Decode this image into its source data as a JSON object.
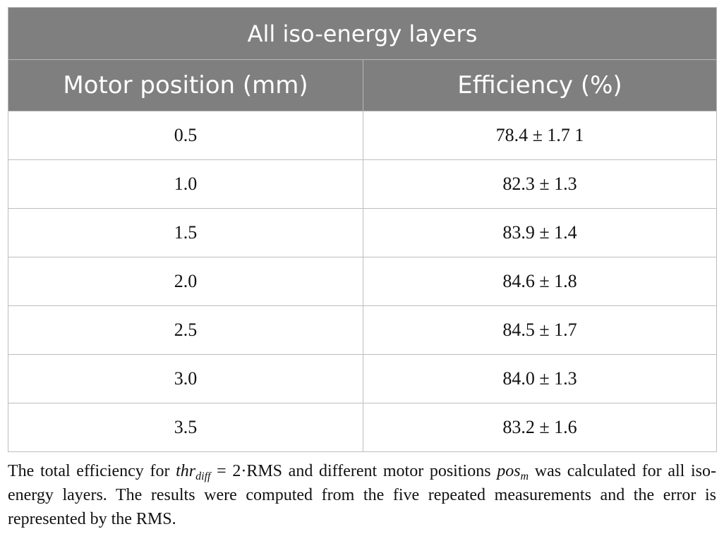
{
  "table": {
    "title": "All iso-energy layers",
    "headers": [
      "Motor position (mm)",
      "Efficiency (%)"
    ],
    "rows": [
      {
        "position": "0.5",
        "efficiency": "78.4 ± 1.7 1"
      },
      {
        "position": "1.0",
        "efficiency": "82.3 ± 1.3"
      },
      {
        "position": "1.5",
        "efficiency": "83.9 ± 1.4"
      },
      {
        "position": "2.0",
        "efficiency": "84.6 ± 1.8"
      },
      {
        "position": "2.5",
        "efficiency": "84.5 ± 1.7"
      },
      {
        "position": "3.0",
        "efficiency": "84.0 ± 1.3"
      },
      {
        "position": "3.5",
        "efficiency": "83.2 ± 1.6"
      }
    ]
  },
  "caption": {
    "part1": "The total efficiency for ",
    "thr_base": "thr",
    "thr_sub": "diff",
    "part2": " = 2·RMS and different motor positions ",
    "pos_base": "pos",
    "pos_sub": "m",
    "part3": " was calculated for all iso-energy layers. The results were computed from the five repeated measurements and the error is represented by the RMS."
  }
}
